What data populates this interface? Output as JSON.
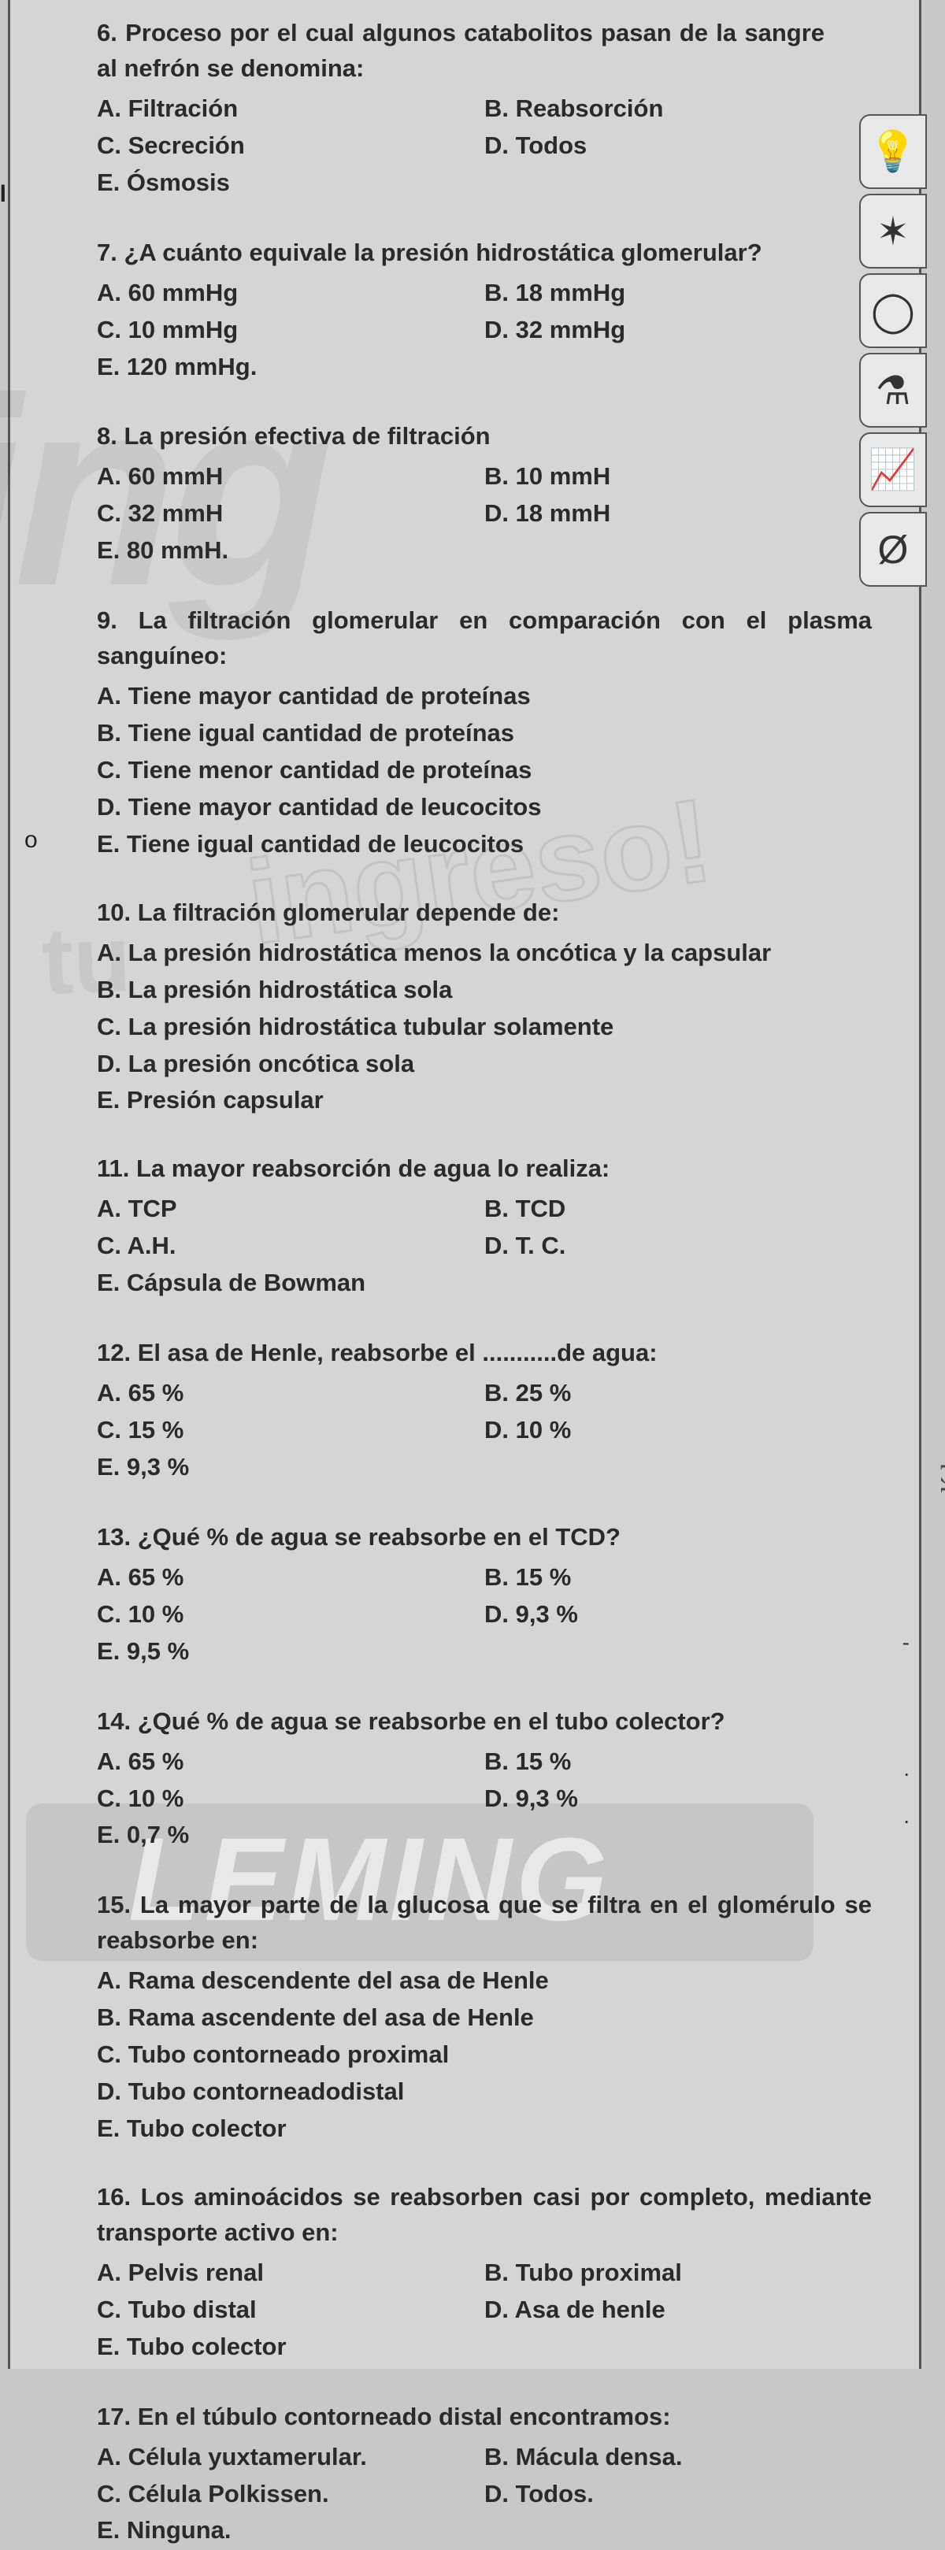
{
  "left_label": "el",
  "questions": [
    {
      "num": "6.",
      "stem": "Proceso por el cual algunos catabolitos pasan de la sangre al nefrón se denomina:",
      "layout": "two",
      "left": [
        "A. Filtración",
        "C. Secreción",
        "E. Ósmosis"
      ],
      "right": [
        "B. Reabsorción",
        "D. Todos"
      ]
    },
    {
      "num": "7.",
      "stem": "¿A cuánto equivale la presión hidrostática glomerular?",
      "layout": "two",
      "left": [
        "A. 60 mmHg",
        "C. 10 mmHg",
        "E. 120 mmHg."
      ],
      "right": [
        "B. 18 mmHg",
        "D. 32 mmHg"
      ]
    },
    {
      "num": "8.",
      "stem": "La presión efectiva de filtración",
      "layout": "two",
      "left": [
        "A. 60 mmH",
        "C. 32 mmH",
        "E. 80 mmH."
      ],
      "right": [
        "B. 10 mmH",
        "D. 18 mmH"
      ]
    },
    {
      "num": "9.",
      "stem": "La filtración glomerular en comparación con el plasma sanguíneo:",
      "layout": "one",
      "opts": [
        "A. Tiene mayor cantidad de proteínas",
        "B. Tiene igual cantidad de proteínas",
        "C. Tiene menor cantidad de proteínas",
        "D. Tiene mayor cantidad de leucocitos",
        "E. Tiene igual cantidad de leucocitos"
      ]
    },
    {
      "num": "10.",
      "stem": "La filtración glomerular depende de:",
      "layout": "one",
      "opts": [
        "A. La presión hidrostática menos la oncótica y la capsular",
        "B. La presión hidrostática sola",
        "C. La presión hidrostática tubular solamente",
        "D. La presión oncótica sola",
        "E. Presión capsular"
      ]
    },
    {
      "num": "11.",
      "stem": "La mayor reabsorción de agua lo realiza:",
      "layout": "two",
      "left": [
        "A. TCP",
        "C. A.H.",
        "E. Cápsula de Bowman"
      ],
      "right": [
        "B. TCD",
        "D. T. C."
      ]
    },
    {
      "num": "12.",
      "stem": "El asa de Henle, reabsorbe el ...........de agua:",
      "layout": "two",
      "left": [
        "A. 65 %",
        "C. 15 %",
        "E. 9,3 %"
      ],
      "right": [
        "B. 25 %",
        "D. 10 %"
      ]
    },
    {
      "num": "13.",
      "stem": "¿Qué % de agua se reabsorbe en el TCD?",
      "layout": "two",
      "left": [
        "A. 65 %",
        "C. 10 %",
        "E. 9,5 %"
      ],
      "right": [
        "B. 15 %",
        "D. 9,3 %"
      ]
    },
    {
      "num": "14.",
      "stem": "¿Qué % de agua se reabsorbe en el tubo colector?",
      "layout": "two",
      "left": [
        "A. 65 %",
        "C. 10 %",
        "E. 0,7 %"
      ],
      "right": [
        "B. 15 %",
        "D. 9,3 %"
      ]
    },
    {
      "num": "15.",
      "stem": "La mayor parte de la glucosa que se filtra en el glomérulo se reabsorbe en:",
      "layout": "one",
      "opts": [
        "A. Rama descendente del asa de Henle",
        "B. Rama ascendente del asa de Henle",
        "C. Tubo contorneado proximal",
        "D. Tubo contorneadodistal",
        "E. Tubo colector"
      ]
    },
    {
      "num": "16.",
      "stem": "Los aminoácidos se reabsorben casi por completo, mediante transporte activo en:",
      "layout": "two",
      "left": [
        "A. Pelvis renal",
        "C. Tubo distal",
        "E. Tubo colector"
      ],
      "right": [
        "B. Tubo proximal",
        "D. Asa de henle"
      ]
    },
    {
      "num": "17.",
      "stem": "En el túbulo contorneado distal encontramos:",
      "layout": "two",
      "left": [
        "A. Célula yuxtamerular.",
        "C. Célula Polkissen.",
        "E. Ninguna."
      ],
      "right": [
        "B. Mácula densa.",
        "D. Todos."
      ]
    }
  ],
  "watermarks": {
    "ing": "ing",
    "tu": "tu",
    "ingreso": "ingreso!",
    "fleming": "LEMING"
  },
  "side_icons": [
    "bulb-icon",
    "ant-icon",
    "shell-icon",
    "flask-icon",
    "chart-icon",
    "ball-icon"
  ],
  "side_glyphs": [
    "💡",
    "✶",
    "◯",
    "⚗",
    "📈",
    "Ø"
  ],
  "right_handwriting": "líderes"
}
